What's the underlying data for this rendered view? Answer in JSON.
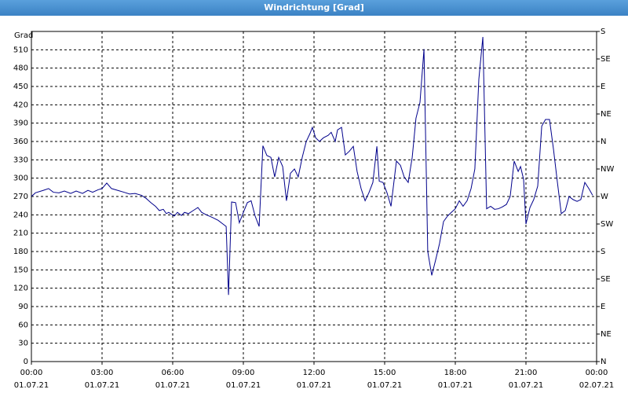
{
  "chart_data": {
    "type": "line",
    "title": "Windrichtung [Grad]",
    "y_axis_label": "Grad",
    "x": [
      0,
      0.17,
      0.5,
      0.73,
      0.93,
      1.17,
      1.4,
      1.67,
      1.9,
      2.17,
      2.4,
      2.6,
      2.83,
      3,
      3.2,
      3.4,
      3.67,
      3.93,
      4.17,
      4.4,
      4.67,
      4.87,
      5.07,
      5.27,
      5.43,
      5.6,
      5.73,
      5.83,
      6.07,
      6.2,
      6.37,
      6.5,
      6.67,
      6.87,
      7.07,
      7.23,
      7.43,
      7.67,
      7.93,
      8.1,
      8.27,
      8.37,
      8.5,
      8.67,
      8.83,
      9,
      9.17,
      9.33,
      9.5,
      9.67,
      9.83,
      10,
      10.17,
      10.33,
      10.5,
      10.67,
      10.83,
      11,
      11.17,
      11.33,
      11.5,
      11.67,
      11.83,
      11.93,
      12.07,
      12.23,
      12.4,
      12.6,
      12.73,
      12.9,
      13,
      13.17,
      13.33,
      13.5,
      13.67,
      13.83,
      14,
      14.17,
      14.33,
      14.5,
      14.67,
      14.77,
      14.93,
      15.1,
      15.27,
      15.5,
      15.67,
      15.83,
      16,
      16.17,
      16.33,
      16.5,
      16.67,
      16.83,
      17,
      17.17,
      17.33,
      17.5,
      17.67,
      17.83,
      18,
      18.17,
      18.33,
      18.5,
      18.67,
      18.83,
      19,
      19.17,
      19.33,
      19.5,
      19.67,
      19.83,
      20,
      20.17,
      20.33,
      20.5,
      20.67,
      20.77,
      20.9,
      21,
      21.17,
      21.33,
      21.5,
      21.67,
      21.83,
      22,
      22.17,
      22.33,
      22.5,
      22.67,
      22.83,
      23,
      23.17,
      23.33,
      23.5,
      23.67,
      23.83
    ],
    "series": [
      {
        "name": "Windrichtung",
        "color": "#00008b",
        "values": [
          270,
          276,
          280,
          283,
          277,
          276,
          279,
          275,
          279,
          275,
          280,
          277,
          281,
          283,
          292,
          283,
          280,
          277,
          274,
          275,
          272,
          267,
          260,
          254,
          247,
          249,
          242,
          244,
          238,
          244,
          239,
          244,
          242,
          247,
          252,
          244,
          240,
          236,
          231,
          226,
          221,
          109,
          261,
          260,
          227,
          244,
          260,
          263,
          238,
          221,
          353,
          337,
          334,
          302,
          334,
          319,
          263,
          308,
          315,
          302,
          334,
          360,
          373,
          383,
          366,
          360,
          366,
          370,
          375,
          360,
          379,
          383,
          338,
          344,
          352,
          311,
          283,
          263,
          276,
          293,
          352,
          295,
          293,
          276,
          254,
          328,
          321,
          302,
          293,
          334,
          398,
          424,
          511,
          180,
          141,
          167,
          193,
          229,
          238,
          244,
          250,
          263,
          254,
          263,
          283,
          315,
          462,
          531,
          250,
          254,
          249,
          250,
          253,
          257,
          270,
          328,
          311,
          319,
          298,
          225,
          252,
          265,
          287,
          385,
          396,
          396,
          347,
          295,
          242,
          247,
          270,
          265,
          262,
          265,
          293,
          283,
          272
        ]
      }
    ],
    "xlim": [
      0,
      24
    ],
    "xticks": [
      {
        "value": 0,
        "label": "00:00"
      },
      {
        "value": 3,
        "label": "03:00"
      },
      {
        "value": 6,
        "label": "06:00"
      },
      {
        "value": 9,
        "label": "09:00"
      },
      {
        "value": 12,
        "label": "12:00"
      },
      {
        "value": 15,
        "label": "15:00"
      },
      {
        "value": 18,
        "label": "18:00"
      },
      {
        "value": 21,
        "label": "21:00"
      },
      {
        "value": 24,
        "label": "00:00"
      }
    ],
    "xtick_dates": [
      "01.07.21",
      "01.07.21",
      "01.07.21",
      "01.07.21",
      "01.07.21",
      "01.07.21",
      "01.07.21",
      "01.07.21",
      "02.07.21"
    ],
    "ylim": [
      0,
      540
    ],
    "yticks": [
      0,
      30,
      60,
      90,
      120,
      150,
      180,
      210,
      240,
      270,
      300,
      330,
      360,
      390,
      420,
      450,
      480,
      510
    ],
    "y2lim": [
      0,
      540
    ],
    "y2ticks": [
      {
        "value": 0,
        "label": "N"
      },
      {
        "value": 45,
        "label": "NE"
      },
      {
        "value": 90,
        "label": "E"
      },
      {
        "value": 135,
        "label": "SE"
      },
      {
        "value": 180,
        "label": "S"
      },
      {
        "value": 225,
        "label": "SW"
      },
      {
        "value": 270,
        "label": "W"
      },
      {
        "value": 315,
        "label": "NW"
      },
      {
        "value": 360,
        "label": "N"
      },
      {
        "value": 405,
        "label": "NE"
      },
      {
        "value": 450,
        "label": "E"
      },
      {
        "value": 495,
        "label": "SE"
      },
      {
        "value": 540,
        "label": "S"
      }
    ],
    "grid": true
  }
}
